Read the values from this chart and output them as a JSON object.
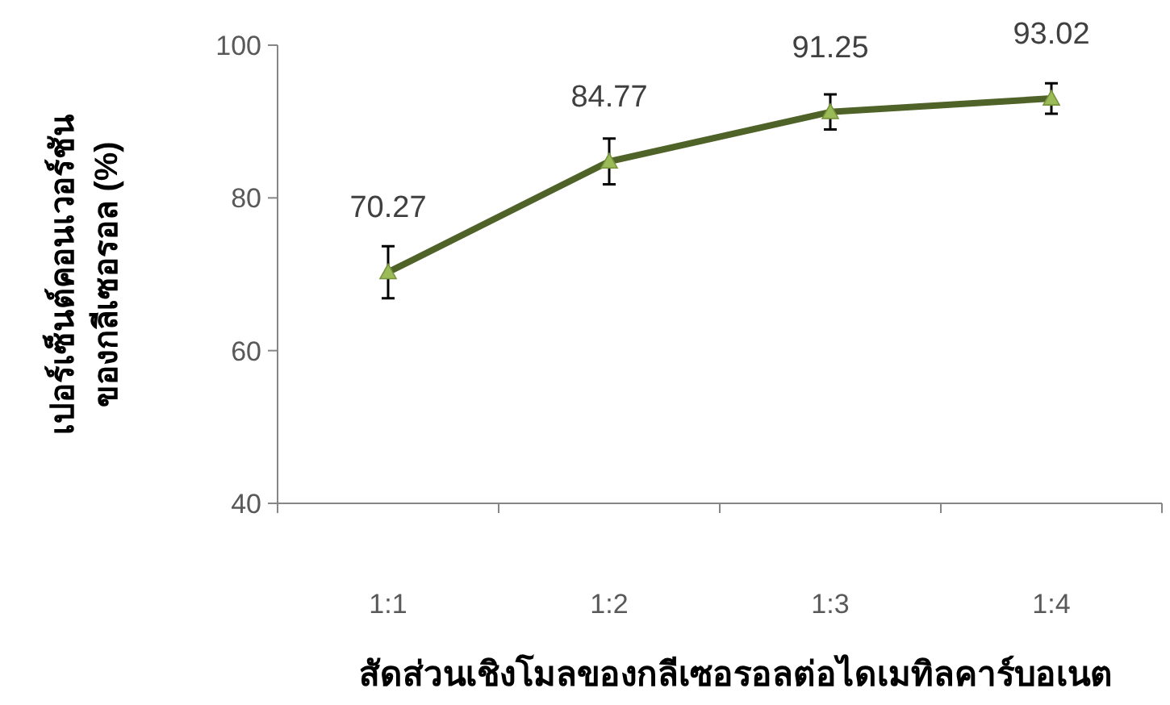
{
  "chart_data": {
    "type": "line",
    "xlabel": "สัดส่วนเชิงโมลของกลีเซอรอลต่อไดเมทิลคาร์บอเนต",
    "ylabel": "เปอร์เซ็นต์คอนเวอร์ชัน\nของกลีเซอรอล (%)",
    "categories": [
      "1:1",
      "1:2",
      "1:3",
      "1:4"
    ],
    "series": [
      {
        "color": "#4f6228",
        "values": [
          70.27,
          84.77,
          91.25,
          93.02
        ],
        "errors": [
          3.4,
          3.0,
          2.3,
          2.0
        ]
      }
    ],
    "ylim": [
      40,
      100
    ],
    "yticks": [
      40,
      60,
      80,
      100
    ],
    "grid": false,
    "marker": "triangle",
    "line_style": "solid",
    "data_labels": true
  }
}
